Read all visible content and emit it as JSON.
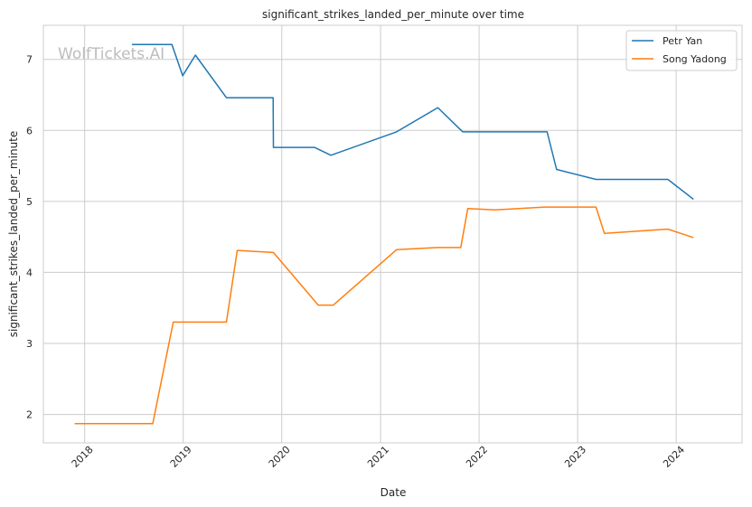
{
  "watermark": "WolfTickets.AI",
  "chart_data": {
    "type": "line",
    "title": "significant_strikes_landed_per_minute over time",
    "xlabel": "Date",
    "ylabel": "significant_strikes_landed_per_minute",
    "x_ticks": [
      "2018",
      "2019",
      "2020",
      "2021",
      "2022",
      "2023",
      "2024"
    ],
    "y_ticks": [
      "2",
      "3",
      "4",
      "5",
      "6",
      "7"
    ],
    "xlim": [
      "2017-08-01",
      "2024-09-01"
    ],
    "ylim": [
      1.6,
      7.48
    ],
    "grid": true,
    "legend": "top-right",
    "series": [
      {
        "name": "Petr Yan",
        "color": "#1f77b4",
        "points": [
          [
            "2018-06-25",
            7.21
          ],
          [
            "2018-11-20",
            7.21
          ],
          [
            "2018-12-30",
            6.77
          ],
          [
            "2019-02-15",
            7.06
          ],
          [
            "2019-06-10",
            6.46
          ],
          [
            "2019-11-30",
            6.46
          ],
          [
            "2019-12-01",
            5.76
          ],
          [
            "2020-05-01",
            5.76
          ],
          [
            "2020-07-01",
            5.65
          ],
          [
            "2021-03-01",
            5.98
          ],
          [
            "2021-08-01",
            6.32
          ],
          [
            "2021-11-01",
            5.98
          ],
          [
            "2022-03-01",
            5.98
          ],
          [
            "2022-09-10",
            5.98
          ],
          [
            "2022-10-15",
            5.45
          ],
          [
            "2023-03-10",
            5.31
          ],
          [
            "2023-12-01",
            5.31
          ],
          [
            "2024-03-05",
            5.03
          ]
        ]
      },
      {
        "name": "Song Yadong",
        "color": "#ff7f0e",
        "points": [
          [
            "2017-11-25",
            1.87
          ],
          [
            "2018-09-10",
            1.87
          ],
          [
            "2018-11-25",
            3.3
          ],
          [
            "2019-06-10",
            3.3
          ],
          [
            "2019-07-20",
            4.31
          ],
          [
            "2019-12-01",
            4.28
          ],
          [
            "2020-05-15",
            3.54
          ],
          [
            "2020-07-10",
            3.54
          ],
          [
            "2021-03-01",
            4.32
          ],
          [
            "2021-08-01",
            4.35
          ],
          [
            "2021-10-25",
            4.35
          ],
          [
            "2021-11-20",
            4.9
          ],
          [
            "2022-03-01",
            4.88
          ],
          [
            "2022-09-01",
            4.92
          ],
          [
            "2023-03-10",
            4.92
          ],
          [
            "2023-04-10",
            4.55
          ],
          [
            "2023-12-01",
            4.61
          ],
          [
            "2024-03-05",
            4.49
          ]
        ]
      }
    ]
  }
}
